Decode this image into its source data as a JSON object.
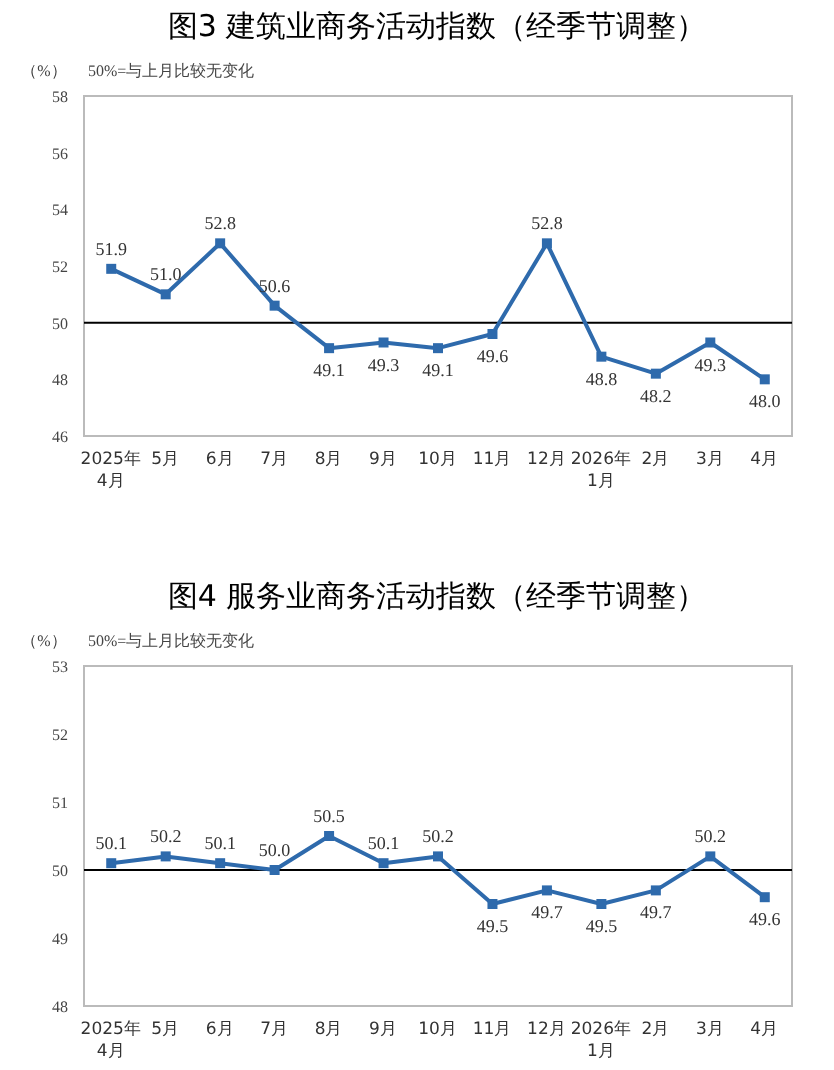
{
  "chart_data": [
    {
      "type": "line",
      "title": "图3 建筑业商务活动指数（经季节调整）",
      "ylabel": "（%）",
      "annotations": [
        "50%=与上月比较无变化"
      ],
      "categories": [
        "2025年\n4月",
        "5月",
        "6月",
        "7月",
        "8月",
        "9月",
        "10月",
        "11月",
        "12月",
        "2026年\n1月",
        "2月",
        "3月",
        "4月"
      ],
      "series": [
        {
          "color": "#2e6aac",
          "values": [
            51.9,
            51.0,
            52.8,
            50.6,
            49.1,
            49.3,
            49.1,
            49.6,
            52.8,
            48.8,
            48.2,
            49.3,
            48.0
          ],
          "value_labels": [
            "51.9",
            "51.0",
            "52.8",
            "50.6",
            "49.1",
            "49.3",
            "49.1",
            "49.6",
            "52.8",
            "48.8",
            "48.2",
            "49.3",
            "48.0"
          ]
        }
      ],
      "ylim": [
        46,
        58
      ],
      "yticks": [
        46,
        48,
        50,
        52,
        54,
        56,
        58
      ],
      "marker": "square",
      "ref_lines": [
        {
          "axis": "y",
          "value": 50,
          "color": "#000000"
        }
      ]
    },
    {
      "type": "line",
      "title": "图4 服务业商务活动指数（经季节调整）",
      "ylabel": "（%）",
      "annotations": [
        "50%=与上月比较无变化"
      ],
      "categories": [
        "2025年\n4月",
        "5月",
        "6月",
        "7月",
        "8月",
        "9月",
        "10月",
        "11月",
        "12月",
        "2026年\n1月",
        "2月",
        "3月",
        "4月"
      ],
      "series": [
        {
          "color": "#2e6aac",
          "values": [
            50.1,
            50.2,
            50.1,
            50.0,
            50.5,
            50.1,
            50.2,
            49.5,
            49.7,
            49.5,
            49.7,
            50.2,
            49.6
          ],
          "value_labels": [
            "50.1",
            "50.2",
            "50.1",
            "50.0",
            "50.5",
            "50.1",
            "50.2",
            "49.5",
            "49.7",
            "49.5",
            "49.7",
            "50.2",
            "49.6"
          ]
        }
      ],
      "ylim": [
        48,
        53
      ],
      "yticks": [
        48,
        49,
        50,
        51,
        52,
        53
      ],
      "marker": "square",
      "ref_lines": [
        {
          "axis": "y",
          "value": 50,
          "color": "#000000"
        }
      ]
    }
  ]
}
